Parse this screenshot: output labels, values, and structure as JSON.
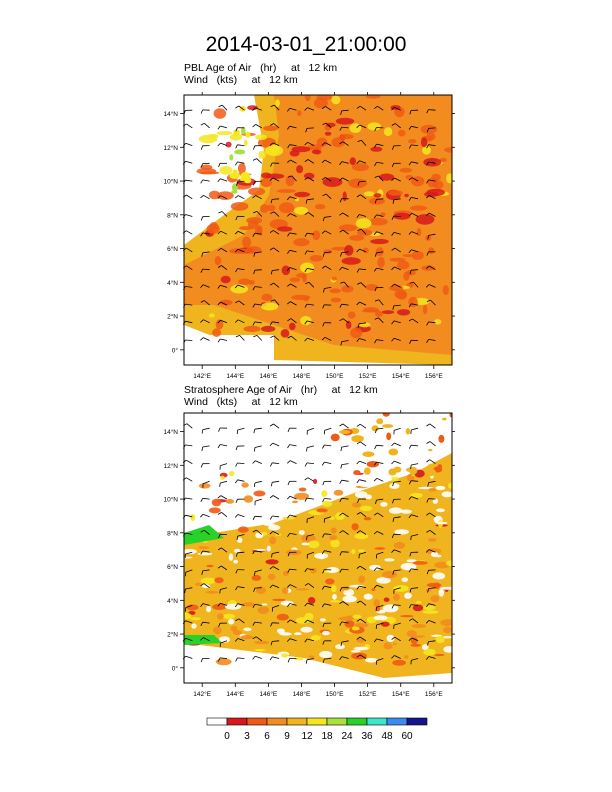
{
  "title": "2014-03-01_21:00:00",
  "panels": [
    {
      "line1": "PBL Age of Air   (hr)     at   12 km",
      "line2": "Wind   (kts)     at   12 km",
      "field": "pbl"
    },
    {
      "line1": "Stratosphere Age of Air   (hr)     at   12 km",
      "line2": "Wind   (kts)     at   12 km",
      "field": "strat"
    }
  ],
  "lon_ticks": [
    "142°E",
    "144°E",
    "146°E",
    "148°E",
    "150°E",
    "152°E",
    "154°E",
    "156°E"
  ],
  "lat_ticks": [
    "0°",
    "2°N",
    "4°N",
    "6°N",
    "8°N",
    "10°N",
    "12°N",
    "14°N"
  ],
  "colorbar": {
    "labels": [
      "0",
      "3",
      "6",
      "9",
      "12",
      "18",
      "24",
      "36",
      "48",
      "60"
    ],
    "colors": [
      "#ffffff",
      "#d7191c",
      "#f05a14",
      "#f28c1e",
      "#f0b41e",
      "#f5e61e",
      "#a8e03c",
      "#28d228",
      "#3ce6c8",
      "#3c8cf0",
      "#14148c"
    ]
  }
}
